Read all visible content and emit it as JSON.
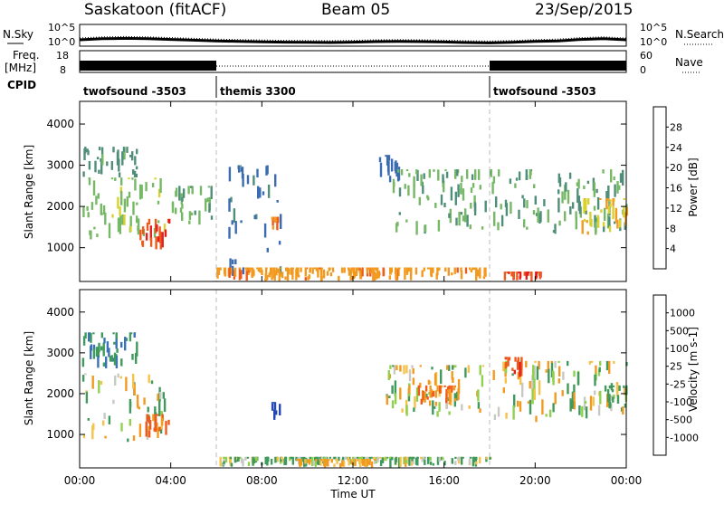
{
  "header": {
    "site": "Saskatoon (fitACF)",
    "beam": "Beam 05",
    "date": "23/Sep/2015"
  },
  "panel_labels": {
    "nsky": "N.Sky",
    "nsearch": "N.Search",
    "freq_line1": "Freq.",
    "freq_line2": "[MHz]",
    "nave": "Nave",
    "cpid": "CPID"
  },
  "noise_axis": {
    "left_ticks": [
      "10^5",
      "10^0"
    ],
    "right_ticks": [
      "10^5",
      "10^0"
    ]
  },
  "freq_axis": {
    "left_ticks": [
      "18",
      "8"
    ],
    "right_ticks": [
      "60",
      "0"
    ]
  },
  "cpid_segments": [
    {
      "start_h": 0,
      "end_h": 6,
      "label": "twofsound -3503"
    },
    {
      "start_h": 6,
      "end_h": 18,
      "label": "themis 3300"
    },
    {
      "start_h": 18,
      "end_h": 24,
      "label": "twofsound -3503"
    }
  ],
  "colors": {
    "power": [
      "#1a3cff",
      "#3b6bb0",
      "#4f8e78",
      "#76b866",
      "#d9d22e",
      "#f29a1f",
      "#ee5a1c",
      "#e41e1a"
    ],
    "velocity": [
      "#e41e1a",
      "#ee5a1c",
      "#f29a1f",
      "#f5c24a",
      "#c8c8c4",
      "#8fd14f",
      "#3f9a5c",
      "#3a72b8",
      "#2347b3"
    ],
    "gray": "#c8c8c4"
  },
  "chart_data": [
    {
      "type": "line",
      "title": "N.Sky",
      "series": [
        {
          "name": "N.Sky",
          "x": [
            0,
            1,
            2,
            3,
            4,
            5,
            6,
            7,
            8,
            9,
            10,
            11,
            12,
            13,
            14,
            15,
            16,
            17,
            18,
            19,
            20,
            21,
            22,
            23,
            24
          ],
          "values": [
            1.0,
            1.3,
            1.4,
            1.3,
            1.1,
            0.9,
            0.7,
            0.55,
            0.45,
            0.35,
            0.3,
            0.25,
            0.35,
            0.5,
            0.55,
            0.5,
            0.4,
            0.25,
            0.15,
            0.3,
            0.55,
            0.7,
            1.1,
            1.3,
            1.0
          ]
        }
      ],
      "ylabel": "",
      "ylim": [
        0,
        5
      ]
    },
    {
      "type": "area",
      "title": "Freq.",
      "series": [
        {
          "name": "Freq.",
          "x": [
            0,
            6,
            6,
            18,
            18,
            24
          ],
          "values": [
            18,
            18,
            8,
            8,
            18,
            18
          ]
        }
      ],
      "ylim": [
        8,
        18
      ]
    },
    {
      "type": "heatmap",
      "title": "",
      "xlabel": "Time UT",
      "ylabel": "Slant Range [km]",
      "x_ticks": [
        "00:00",
        "04:00",
        "08:00",
        "12:00",
        "16:00",
        "20:00",
        "00:00"
      ],
      "xlim_hours": [
        0,
        24
      ],
      "y_ticks": [
        1000,
        2000,
        3000,
        4000
      ],
      "ylim": [
        180,
        4550
      ],
      "colorbar": {
        "label": "Power [dB]",
        "ticks": [
          "28",
          "24",
          "20",
          "16",
          "12",
          "8",
          "4"
        ],
        "range": [
          0,
          30
        ]
      },
      "regions": [
        {
          "t": [
            0.1,
            3.8
          ],
          "r": [
            1200,
            2700
          ],
          "level": 14
        },
        {
          "t": [
            2.6,
            3.9
          ],
          "r": [
            950,
            1700
          ],
          "level": 26
        },
        {
          "t": [
            0.1,
            2.5
          ],
          "r": [
            2700,
            3450
          ],
          "level": 10
        },
        {
          "t": [
            4.0,
            5.8
          ],
          "r": [
            1500,
            2500
          ],
          "level": 12
        },
        {
          "t": [
            6.5,
            8.8
          ],
          "r": [
            300,
            3000
          ],
          "level": 6
        },
        {
          "t": [
            8.4,
            8.8
          ],
          "r": [
            1350,
            1750
          ],
          "level": 22
        },
        {
          "t": [
            6.0,
            17.8
          ],
          "r": [
            190,
            520
          ],
          "level": 21
        },
        {
          "t": [
            13.0,
            14.0
          ],
          "r": [
            2500,
            3250
          ],
          "level": 6
        },
        {
          "t": [
            13.6,
            18.2
          ],
          "r": [
            1300,
            2900
          ],
          "level": 12
        },
        {
          "t": [
            18.1,
            24.0
          ],
          "r": [
            1300,
            2900
          ],
          "level": 11
        },
        {
          "t": [
            22.0,
            24.0
          ],
          "r": [
            1300,
            2200
          ],
          "level": 18
        },
        {
          "t": [
            18.4,
            20.2
          ],
          "r": [
            190,
            420
          ],
          "level": 26
        }
      ]
    },
    {
      "type": "heatmap",
      "title": "",
      "xlabel": "Time UT",
      "ylabel": "Slant Range [km]",
      "x_ticks": [
        "00:00",
        "04:00",
        "08:00",
        "12:00",
        "16:00",
        "20:00",
        "00:00"
      ],
      "xlim_hours": [
        0,
        24
      ],
      "y_ticks": [
        1000,
        2000,
        3000,
        4000
      ],
      "ylim": [
        180,
        4550
      ],
      "colorbar": {
        "label": "Velocity [m s-1]",
        "ticks": [
          "1000",
          "500",
          "100",
          "25",
          "-25",
          "-100",
          "-500",
          "-1000"
        ],
        "range": [
          -1200,
          1200
        ]
      },
      "regions": [
        {
          "t": [
            0.1,
            3.8
          ],
          "r": [
            800,
            2500
          ],
          "level": 0
        },
        {
          "t": [
            2.8,
            3.9
          ],
          "r": [
            900,
            1500
          ],
          "level": -400
        },
        {
          "t": [
            0.1,
            2.5
          ],
          "r": [
            2600,
            3500
          ],
          "level": 300
        },
        {
          "t": [
            8.4,
            8.9
          ],
          "r": [
            1300,
            1800
          ],
          "level": 800
        },
        {
          "t": [
            6.0,
            18.0
          ],
          "r": [
            190,
            450
          ],
          "level": 80
        },
        {
          "t": [
            9.5,
            13.0
          ],
          "r": [
            190,
            400
          ],
          "level": -150
        },
        {
          "t": [
            13.3,
            17.8
          ],
          "r": [
            1400,
            2700
          ],
          "level": 0
        },
        {
          "t": [
            14.8,
            16.6
          ],
          "r": [
            1700,
            2200
          ],
          "level": -300
        },
        {
          "t": [
            18.1,
            24.0
          ],
          "r": [
            1300,
            2800
          ],
          "level": 0
        },
        {
          "t": [
            18.6,
            19.4
          ],
          "r": [
            2400,
            2900
          ],
          "level": -700
        },
        {
          "t": [
            23.0,
            24.0
          ],
          "r": [
            1600,
            2200
          ],
          "level": 120
        }
      ]
    }
  ]
}
